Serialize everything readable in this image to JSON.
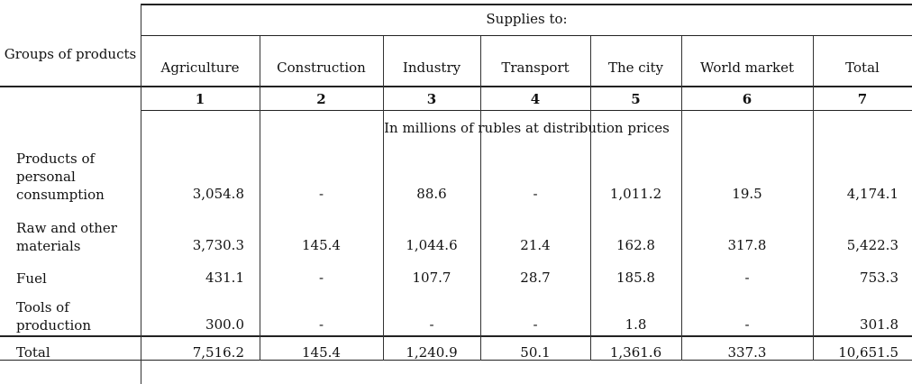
{
  "header": {
    "supplies_to": "Supplies to:",
    "groups_label": "Groups of products",
    "columns": [
      "Agriculture",
      "Construction",
      "Industry",
      "Transport",
      "The city",
      "World market",
      "Total"
    ],
    "numbers": [
      "1",
      "2",
      "3",
      "4",
      "5",
      "6",
      "7"
    ],
    "units": "In millions of rubles at distribution prices"
  },
  "rows": [
    {
      "label": "Products of personal consumption",
      "values": [
        "3,054.8",
        "-",
        "88.6",
        "-",
        "1,011.2",
        "19.5",
        "4,174.1"
      ]
    },
    {
      "label": "Raw and other materials",
      "values": [
        "3,730.3",
        "145.4",
        "1,044.6",
        "21.4",
        "162.8",
        "317.8",
        "5,422.3"
      ]
    },
    {
      "label": "Fuel",
      "values": [
        "431.1",
        "-",
        "107.7",
        "28.7",
        "185.8",
        "-",
        "753.3"
      ]
    },
    {
      "label": "Tools of production",
      "values": [
        "300.0",
        "-",
        "-",
        "-",
        "1.8",
        "-",
        "301.8"
      ]
    }
  ],
  "total_row": {
    "label": "Total",
    "values": [
      "7,516.2",
      "145.4",
      "1,240.9",
      "50.1",
      "1,361.6",
      "337.3",
      "10,651.5"
    ]
  }
}
